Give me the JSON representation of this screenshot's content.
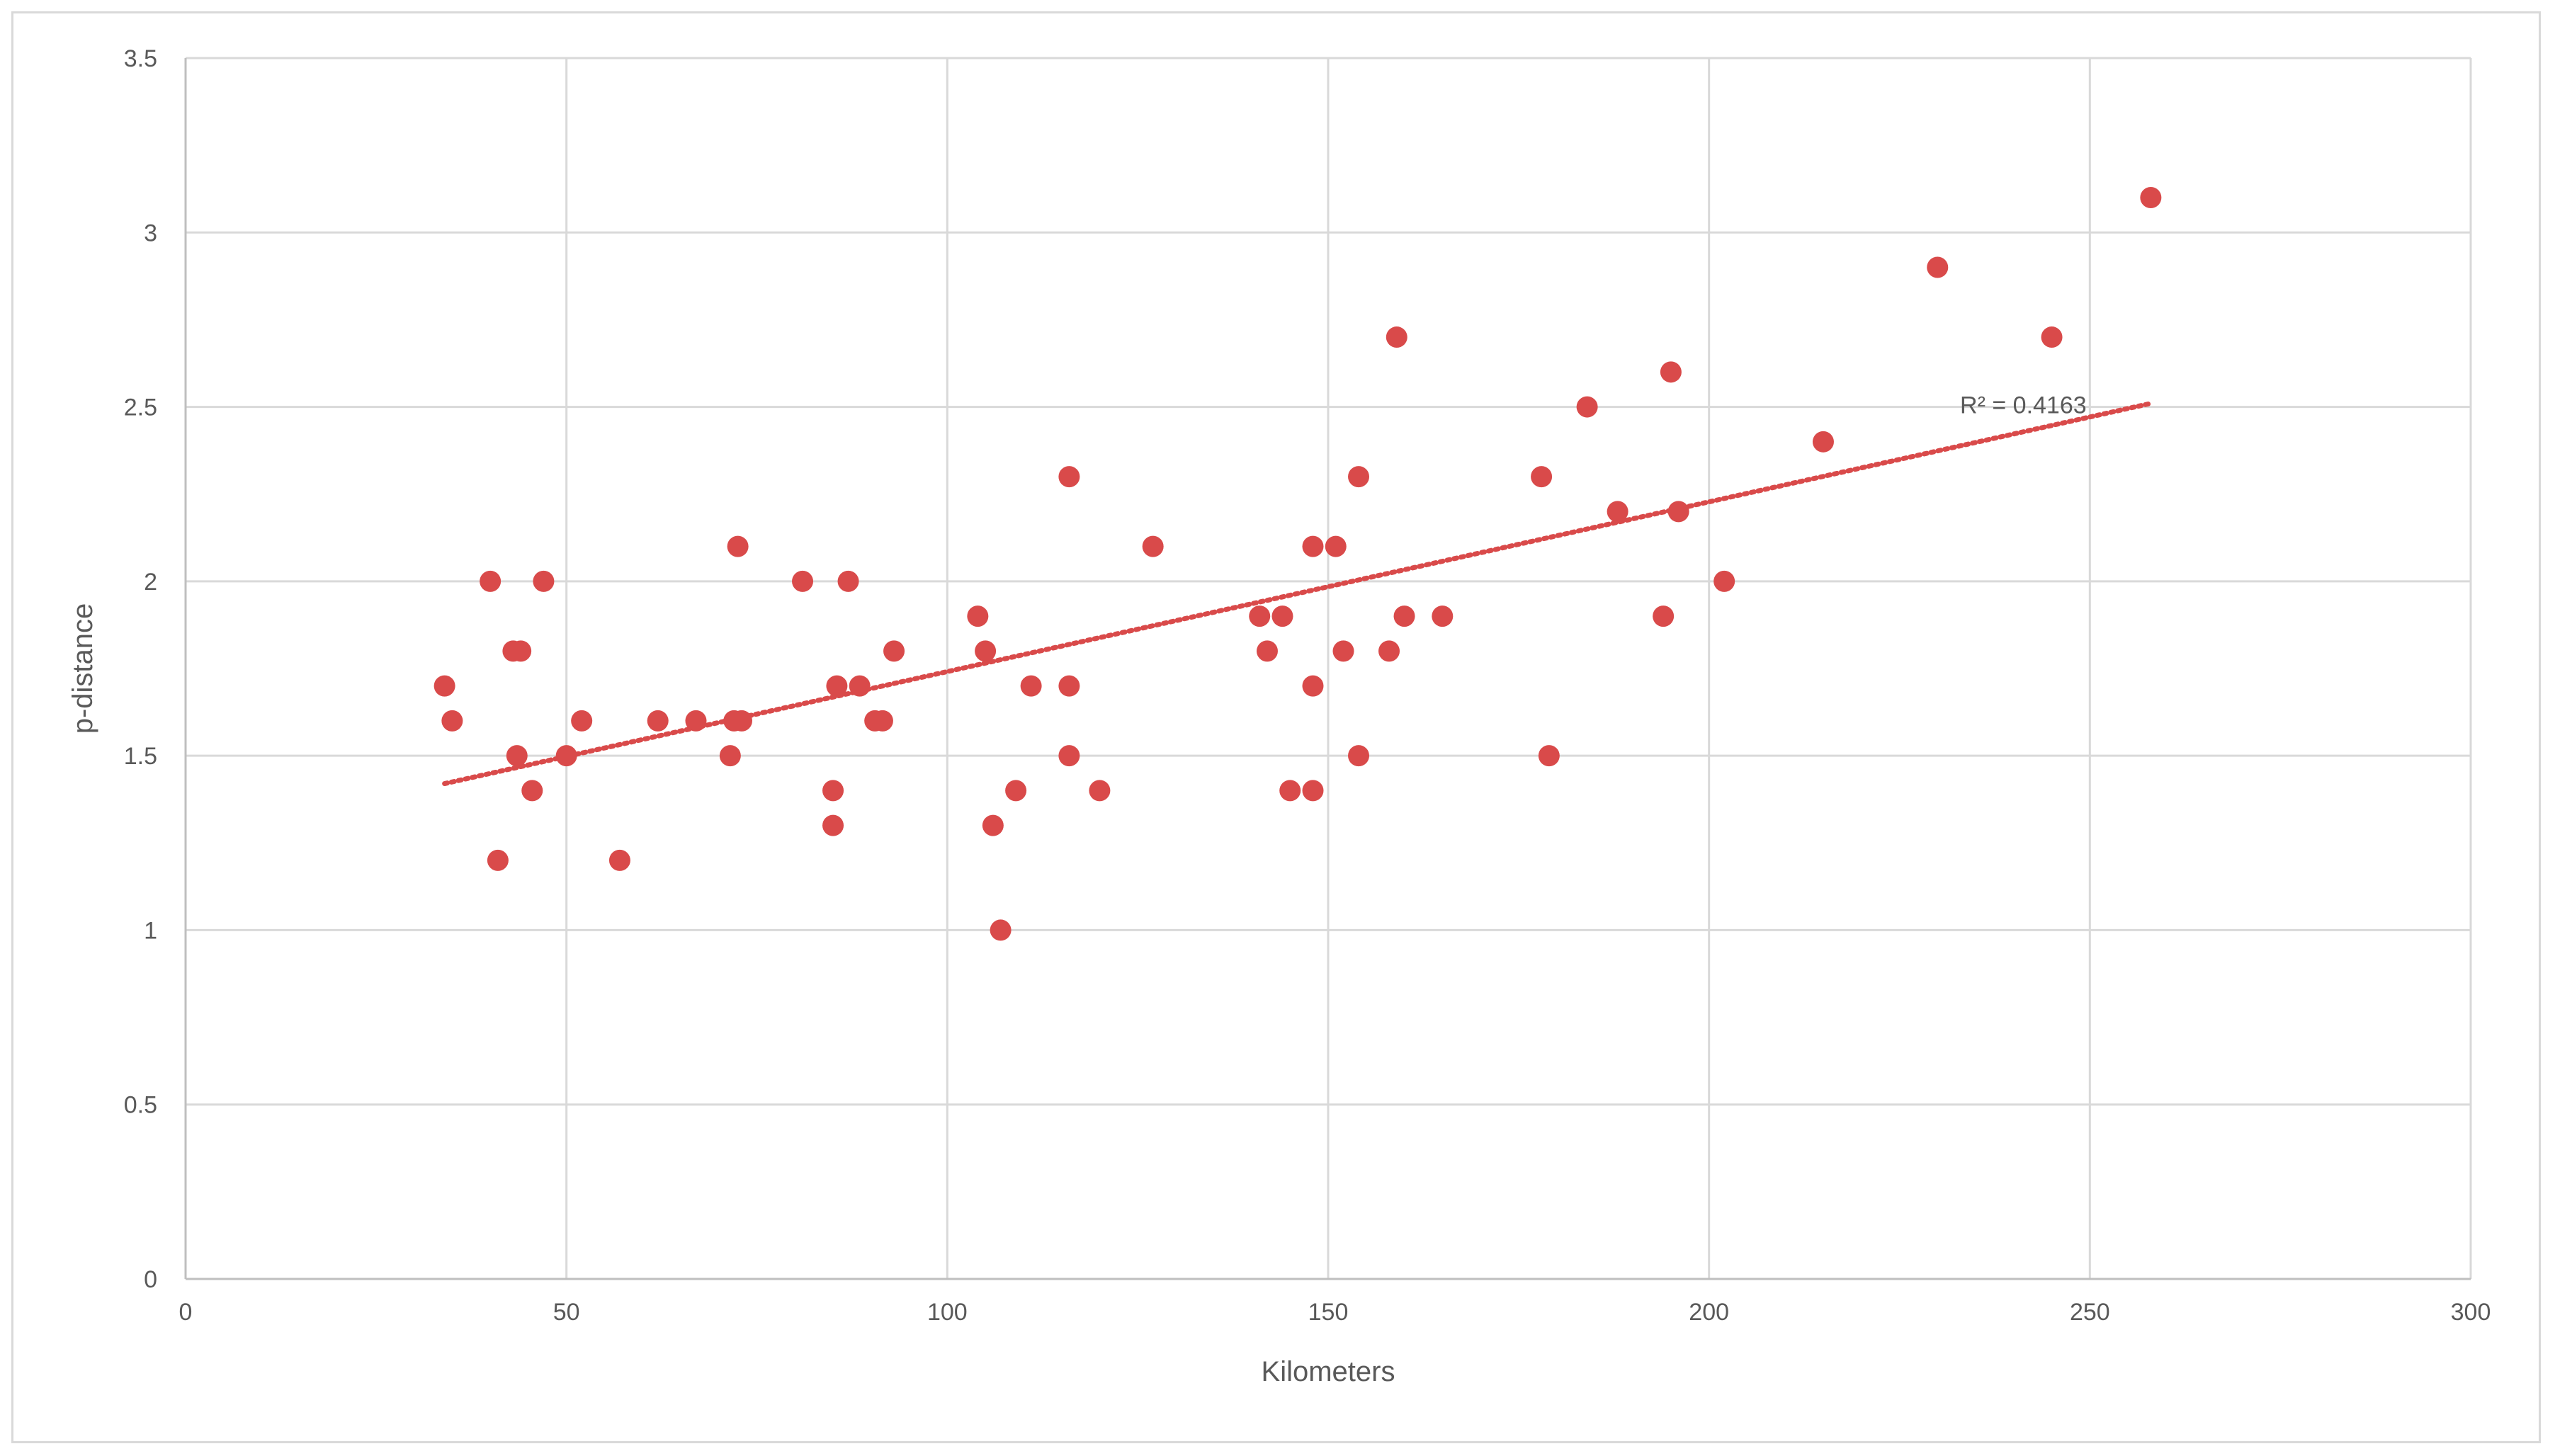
{
  "chart_data": {
    "type": "scatter",
    "title": "",
    "xlabel": "Kilometers",
    "ylabel": "p-distance",
    "xlim": [
      0,
      300
    ],
    "ylim": [
      0,
      3.5
    ],
    "x_ticks": [
      "0",
      "50",
      "100",
      "150",
      "200",
      "250",
      "300"
    ],
    "y_ticks": [
      "0",
      "0.5",
      "1",
      "1.5",
      "2",
      "2.5",
      "3",
      "3.5"
    ],
    "grid": true,
    "legend": "none",
    "marker_color": "#d94a4a",
    "trendline": {
      "type": "linear",
      "color": "#d94a4a",
      "style": "dotted",
      "x_range": [
        34,
        258
      ],
      "y_range": [
        1.42,
        2.51
      ],
      "label": "R² = 0.4163"
    },
    "series": [
      {
        "points": [
          [
            34,
            1.7
          ],
          [
            35,
            1.6
          ],
          [
            40,
            2.0
          ],
          [
            41,
            1.2
          ],
          [
            43,
            1.8
          ],
          [
            44,
            1.8
          ],
          [
            43.5,
            1.5
          ],
          [
            45.5,
            1.4
          ],
          [
            47,
            2.0
          ],
          [
            50,
            1.5
          ],
          [
            52,
            1.6
          ],
          [
            57,
            1.2
          ],
          [
            62,
            1.6
          ],
          [
            67,
            1.6
          ],
          [
            71.5,
            1.5
          ],
          [
            72,
            1.6
          ],
          [
            73,
            1.6
          ],
          [
            72.5,
            2.1
          ],
          [
            81,
            2.0
          ],
          [
            85,
            1.4
          ],
          [
            85,
            1.3
          ],
          [
            85.5,
            1.7
          ],
          [
            87,
            2.0
          ],
          [
            88.5,
            1.7
          ],
          [
            90.5,
            1.6
          ],
          [
            91.5,
            1.6
          ],
          [
            93,
            1.8
          ],
          [
            104,
            1.9
          ],
          [
            105,
            1.8
          ],
          [
            106,
            1.3
          ],
          [
            107,
            1.0
          ],
          [
            109,
            1.4
          ],
          [
            111,
            1.7
          ],
          [
            116,
            2.3
          ],
          [
            116,
            1.7
          ],
          [
            116,
            1.5
          ],
          [
            120,
            1.4
          ],
          [
            127,
            2.1
          ],
          [
            141,
            1.9
          ],
          [
            142,
            1.8
          ],
          [
            144,
            1.9
          ],
          [
            145,
            1.4
          ],
          [
            148,
            2.1
          ],
          [
            148,
            1.7
          ],
          [
            148,
            1.4
          ],
          [
            151,
            2.1
          ],
          [
            152,
            1.8
          ],
          [
            154,
            2.3
          ],
          [
            154,
            1.5
          ],
          [
            158,
            1.8
          ],
          [
            159,
            2.7
          ],
          [
            160,
            1.9
          ],
          [
            165,
            1.9
          ],
          [
            178,
            2.3
          ],
          [
            179,
            1.5
          ],
          [
            184,
            2.5
          ],
          [
            188,
            2.2
          ],
          [
            194,
            1.9
          ],
          [
            195,
            2.6
          ],
          [
            196,
            2.2
          ],
          [
            202,
            2.0
          ],
          [
            215,
            2.4
          ],
          [
            230,
            2.9
          ],
          [
            245,
            2.7
          ],
          [
            258,
            3.1
          ]
        ]
      }
    ]
  }
}
